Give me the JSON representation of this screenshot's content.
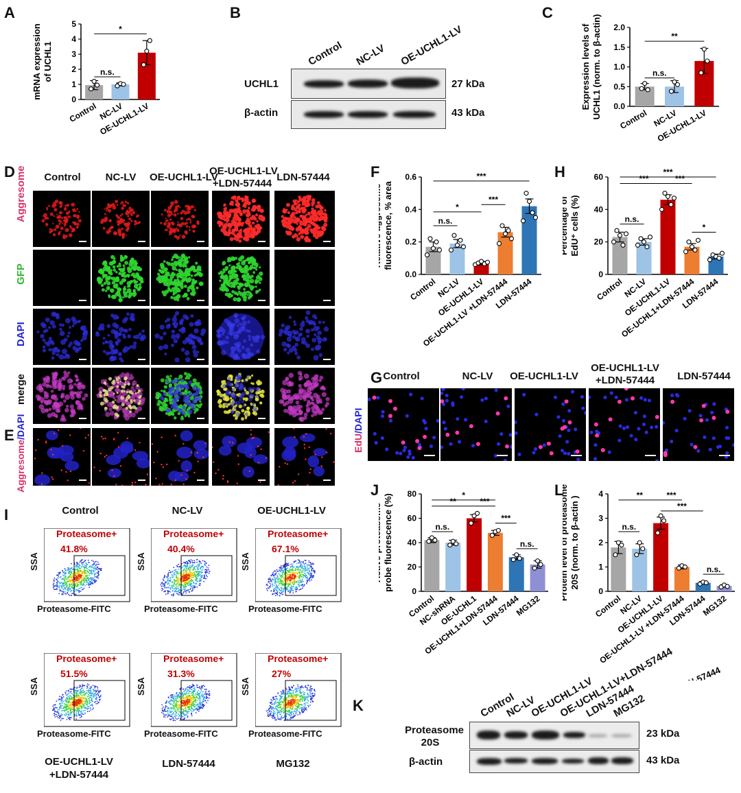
{
  "panels": {
    "A": {
      "letter": "A"
    },
    "B": {
      "letter": "B",
      "lanes": [
        "Control",
        "NC-LV",
        "OE-UCHL1-LV"
      ],
      "rows": [
        {
          "label": "UCHL1",
          "kda": "27 kDa"
        },
        {
          "label": "β-actin",
          "kda": "43 kDa"
        }
      ]
    },
    "C": {
      "letter": "C"
    },
    "D": {
      "letter": "D",
      "columns": [
        "Control",
        "NC-LV",
        "OE-UCHL1-LV",
        "OE-UCHL1-LV",
        "+LDN-57444",
        "LDN-57444"
      ],
      "rows": [
        "Aggresome",
        "GFP",
        "DAPI",
        "merge"
      ]
    },
    "E": {
      "letter": "E",
      "row_label_a": "Aggresome",
      "row_label_b": "/DAPI"
    },
    "F": {
      "letter": "F"
    },
    "G": {
      "letter": "G",
      "columns": [
        "Control",
        "NC-LV",
        "OE-UCHL1-LV",
        "OE-UCHL1-LV",
        "+LDN-57444",
        "LDN-57444"
      ],
      "row_label_a": "EdU",
      "row_label_b": "/DAPI"
    },
    "H": {
      "letter": "H"
    },
    "I": {
      "letter": "I",
      "plots": [
        {
          "title": "Control",
          "gate": "Proteasome+",
          "percent": "41.8%",
          "ylabel": "SSA",
          "xlabel": "Proteasome-FITC"
        },
        {
          "title": "NC-LV",
          "gate": "Proteasome+",
          "percent": "40.4%",
          "ylabel": "SSA",
          "xlabel": "Proteasome-FITC"
        },
        {
          "title": "OE-UCHL1-LV",
          "gate": "Proteasome+",
          "percent": "67.1%",
          "ylabel": "SSA",
          "xlabel": "Proteasome-FITC"
        },
        {
          "title": "",
          "gate": "Proteasome+",
          "percent": "51.5%",
          "ylabel": "SSA",
          "xlabel": "Proteasome-FITC"
        },
        {
          "title": "",
          "gate": "Proteasome+",
          "percent": "31.3%",
          "ylabel": "SSA",
          "xlabel": "Proteasome-FITC"
        },
        {
          "title": "",
          "gate": "Proteasome+",
          "percent": "27%",
          "ylabel": "SSA",
          "xlabel": "Proteasome-FITC"
        }
      ],
      "bottom_titles": [
        "OE-UCHL1-LV",
        "+LDN-57444",
        "LDN-57444",
        "MG132"
      ]
    },
    "J": {
      "letter": "J"
    },
    "K": {
      "letter": "K",
      "lanes": [
        "Control",
        "NC-LV",
        "OE-UCHL1-LV",
        "OE-UCHL1-LV+LDN-57444",
        "LDN-57444",
        "MG132"
      ],
      "rows": [
        {
          "label_a": "Proteasome",
          "label_b": "20S",
          "kda": "23 kDa"
        },
        {
          "label": "β-actin",
          "kda": "43 kDa"
        }
      ]
    },
    "L": {
      "letter": "L"
    }
  },
  "colors": {
    "control": "#a6a6a6",
    "nc": "#9dc3e6",
    "oe": "#c00000",
    "oe_ldn": "#ed7d31",
    "ldn": "#2e75b6",
    "mg132": "#8f8fd6",
    "sig": "#c00000"
  },
  "chart_data": [
    {
      "id": "A",
      "type": "bar",
      "categories": [
        "Control",
        "NC-LV",
        "OE-UCHL1-LV"
      ],
      "values": [
        0.95,
        1.0,
        3.1
      ],
      "errors": [
        0.3,
        0.1,
        0.8
      ],
      "points": [
        [
          0.7,
          1.2,
          0.95
        ],
        [
          0.9,
          1.05,
          1.0
        ],
        [
          2.3,
          3.2,
          3.9
        ]
      ],
      "ylabel": "mRNA expression of UCHL1",
      "ylabel_lines": [
        "mRNA expression",
        "of UCHL1"
      ],
      "ylim": [
        0,
        5
      ],
      "yticks": [
        0,
        1,
        2,
        3,
        4,
        5
      ],
      "annotations": [
        {
          "from": 0,
          "to": 2,
          "text": "*",
          "y": 4.35
        },
        {
          "from": 0,
          "to": 1,
          "text": "n.s.",
          "y": 1.5
        }
      ]
    },
    {
      "id": "C",
      "type": "bar",
      "categories": [
        "Control",
        "NC-LV",
        "OE-UCHL1-LV"
      ],
      "values": [
        0.5,
        0.5,
        1.15
      ],
      "errors": [
        0.08,
        0.15,
        0.32
      ],
      "points": [
        [
          0.45,
          0.58,
          0.42
        ],
        [
          0.38,
          0.62,
          0.55
        ],
        [
          0.85,
          1.45,
          1.15
        ]
      ],
      "ylabel": "Expression levels of UCHL1 (norm. to β-actin)",
      "ylabel_lines": [
        "Expression levels of",
        "UCHL1 (norm. to β-actin)"
      ],
      "ylim": [
        0,
        2.0
      ],
      "yticks": [
        0,
        0.5,
        1.0,
        1.5,
        2.0
      ],
      "ytick_labels": [
        "0.0",
        "0.5",
        "1.0",
        "1.5",
        "2.0"
      ],
      "annotations": [
        {
          "from": 0,
          "to": 2,
          "text": "**",
          "y": 1.65
        },
        {
          "from": 0,
          "to": 1,
          "text": "n.s.",
          "y": 0.72
        }
      ]
    },
    {
      "id": "F",
      "type": "bar",
      "categories": [
        "Control",
        "NC-LV",
        "OE-UCHL1-LV",
        "OE-UCHL1-LV +LDN-57444",
        "LDN-57444"
      ],
      "values": [
        0.17,
        0.19,
        0.07,
        0.26,
        0.42
      ],
      "errors": [
        0.03,
        0.025,
        0.01,
        0.03,
        0.045
      ],
      "points": [
        [
          0.12,
          0.22,
          0.16,
          0.2,
          0.15
        ],
        [
          0.15,
          0.24,
          0.18,
          0.21,
          0.17
        ],
        [
          0.06,
          0.07,
          0.08,
          0.065,
          0.075
        ],
        [
          0.19,
          0.3,
          0.25,
          0.27,
          0.22
        ],
        [
          0.33,
          0.5,
          0.45,
          0.38,
          0.35
        ]
      ],
      "ylabel": "Relative aggresome fluorescence, % area",
      "ylabel_lines": [
        "Relative aggresome",
        "fluorescence, % area"
      ],
      "ylim": [
        0,
        0.6
      ],
      "yticks": [
        0,
        0.2,
        0.4,
        0.6
      ],
      "ytick_labels": [
        "0.0",
        "0.2",
        "0.4",
        "0.6"
      ],
      "annotations": [
        {
          "from": 0,
          "to": 4,
          "text": "***",
          "y": 0.575
        },
        {
          "from": 0,
          "to": 2,
          "text": "*",
          "y": 0.385
        },
        {
          "from": 2,
          "to": 3,
          "text": "***",
          "y": 0.43
        },
        {
          "from": 0,
          "to": 1,
          "text": "n.s.",
          "y": 0.3
        }
      ]
    },
    {
      "id": "H",
      "type": "bar",
      "categories": [
        "Control",
        "NC-LV",
        "OE-UCHL1-LV",
        "OE-UCHL1+LDN-57444",
        "LDN-57444"
      ],
      "values": [
        23,
        20,
        46,
        17,
        11
      ],
      "errors": [
        3,
        2,
        3,
        2,
        1.5
      ],
      "points": [
        [
          20,
          27,
          24,
          18,
          25
        ],
        [
          18,
          22,
          20,
          17,
          23
        ],
        [
          40,
          50,
          48,
          43,
          47
        ],
        [
          14,
          20,
          17,
          15,
          21
        ],
        [
          9,
          12,
          11,
          10,
          13
        ]
      ],
      "ylabel": "Percentage of EdU+ cells (%)",
      "ylabel_lines": [
        "Percentage of",
        "EdU⁺ cells (%)"
      ],
      "ylim": [
        0,
        60
      ],
      "yticks": [
        0,
        20,
        40,
        60
      ],
      "annotations": [
        {
          "from": 0,
          "to": 4,
          "text": "***",
          "y": 60
        },
        {
          "from": 0,
          "to": 2,
          "text": "***",
          "y": 56
        },
        {
          "from": 2,
          "to": 3,
          "text": "***",
          "y": 56
        },
        {
          "from": 3,
          "to": 4,
          "text": "*",
          "y": 26
        },
        {
          "from": 0,
          "to": 1,
          "text": "n.s.",
          "y": 31
        }
      ]
    },
    {
      "id": "J",
      "type": "bar",
      "categories": [
        "Control",
        "NC-shRNA",
        "OE-UCHL1",
        "OE-UCHL1+LDN-57444",
        "LDN-57444",
        "MG132"
      ],
      "values": [
        42,
        40,
        60,
        48,
        28,
        22
      ],
      "errors": [
        2,
        2,
        3,
        2,
        2,
        3
      ],
      "points": [
        [
          41,
          44,
          42
        ],
        [
          38,
          41,
          39
        ],
        [
          56,
          62,
          64
        ],
        [
          46,
          49,
          50
        ],
        [
          26,
          30,
          27
        ],
        [
          19,
          25,
          22
        ]
      ],
      "ylabel": "Active proteasome probe fluorescence (%)",
      "ylabel_lines": [
        "Active proteasome",
        "probe fluorescence (%)"
      ],
      "ylim": [
        0,
        80
      ],
      "yticks": [
        0,
        20,
        40,
        60,
        80
      ],
      "annotations": [
        {
          "from": 0,
          "to": 3,
          "text": "*",
          "y": 75
        },
        {
          "from": 0,
          "to": 2,
          "text": "**",
          "y": 70
        },
        {
          "from": 2,
          "to": 3,
          "text": "***",
          "y": 70
        },
        {
          "from": 3,
          "to": 4,
          "text": "***",
          "y": 56
        },
        {
          "from": 0,
          "to": 1,
          "text": "n.s.",
          "y": 49
        },
        {
          "from": 4,
          "to": 5,
          "text": "n.s.",
          "y": 35
        }
      ]
    },
    {
      "id": "L",
      "type": "bar",
      "categories": [
        "Control",
        "NC-LV",
        "OE-UCHL1-LV",
        "OE-UCHL1-LV +LDN-57444",
        "LDN-57444",
        "MG132"
      ],
      "values": [
        1.8,
        1.75,
        2.8,
        1.0,
        0.35,
        0.22
      ],
      "errors": [
        0.25,
        0.2,
        0.25,
        0.08,
        0.05,
        0.05
      ],
      "points": [
        [
          1.5,
          2.0,
          1.9
        ],
        [
          1.5,
          2.0,
          1.75
        ],
        [
          2.4,
          3.1,
          2.9
        ],
        [
          0.95,
          1.05,
          1.0
        ],
        [
          0.3,
          0.38,
          0.35
        ],
        [
          0.18,
          0.26,
          0.2
        ]
      ],
      "ylabel": "Protein level of proteasome 20S (norm. to β-actin)",
      "ylabel_lines": [
        "Protein level of proteasome",
        "20S (norm. to β-actin )"
      ],
      "ylim": [
        0,
        4
      ],
      "yticks": [
        0,
        1,
        2,
        3,
        4
      ],
      "annotations": [
        {
          "from": 0,
          "to": 2,
          "text": "**",
          "y": 3.75
        },
        {
          "from": 2,
          "to": 3,
          "text": "***",
          "y": 3.75
        },
        {
          "from": 2,
          "to": 4,
          "text": "***",
          "y": 3.3
        },
        {
          "from": 0,
          "to": 1,
          "text": "n.s.",
          "y": 2.45
        },
        {
          "from": 4,
          "to": 5,
          "text": "n.s.",
          "y": 0.7
        }
      ],
      "extra_label": "OE-UCHL1-LV +LDN-57444"
    }
  ]
}
